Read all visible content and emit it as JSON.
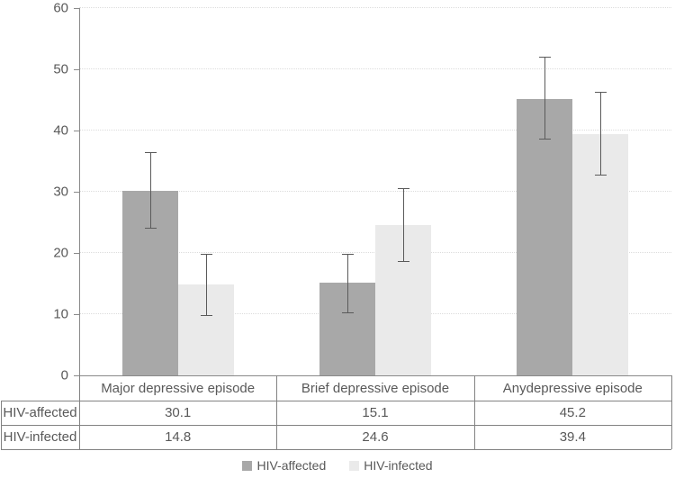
{
  "chart_data": {
    "type": "bar",
    "title": "",
    "xlabel": "",
    "ylabel": "",
    "categories": [
      "Major depressive episode",
      "Brief depressive episode",
      "Anydepressive episode"
    ],
    "series": [
      {
        "name": "HIV-affected",
        "color": "#a8a8a8",
        "values": [
          30.1,
          15.1,
          45.2
        ],
        "error_low": [
          24.1,
          10.3,
          38.7
        ],
        "error_high": [
          36.5,
          19.9,
          52.0
        ]
      },
      {
        "name": "HIV-infected",
        "color": "#eaeaea",
        "values": [
          14.8,
          24.6,
          39.4
        ],
        "error_low": [
          9.9,
          18.7,
          32.8
        ],
        "error_high": [
          19.8,
          30.6,
          46.3
        ]
      }
    ],
    "ylim": [
      0,
      60
    ],
    "yticks": [
      0,
      10,
      20,
      30,
      40,
      50,
      60
    ],
    "grid": "horizontal-dotted",
    "legend_position": "bottom",
    "data_table_shown": true
  },
  "colors": {
    "text": "#595959",
    "axis": "#8a8a8a",
    "table_border": "#828282",
    "gridline": "#dcdcdc",
    "error_bar": "#5a5a5a"
  }
}
